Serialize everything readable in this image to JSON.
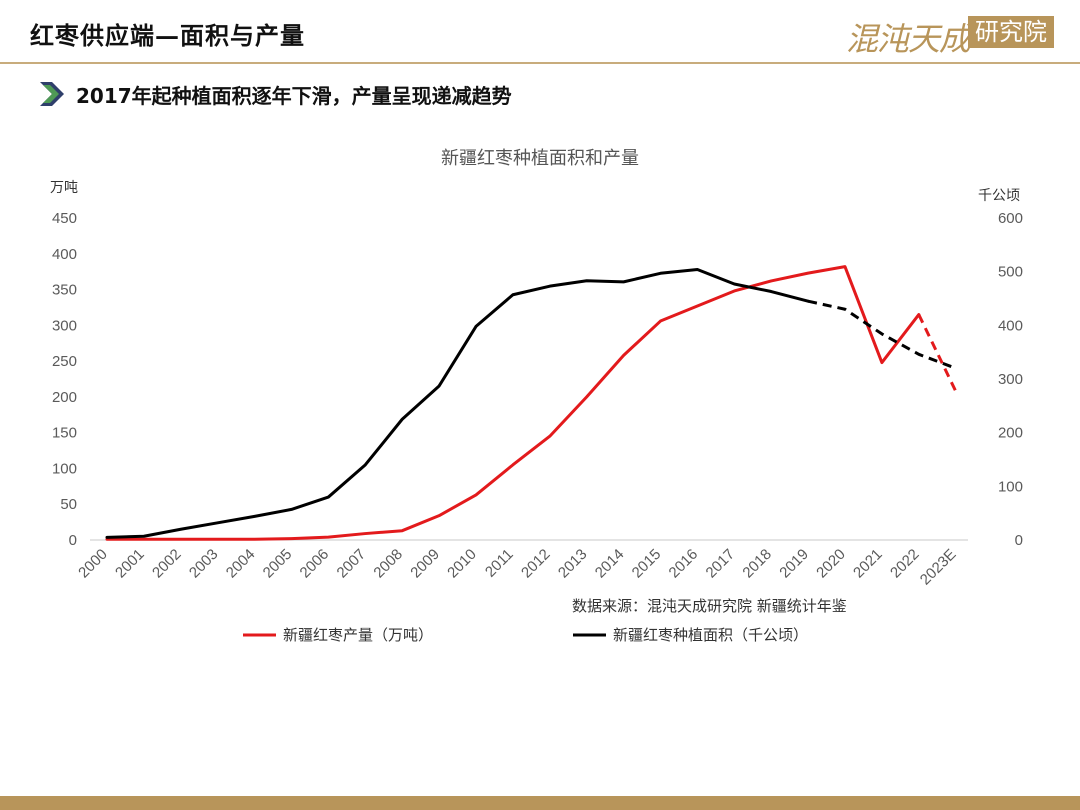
{
  "header": {
    "title": "红枣供应端—面积与产量",
    "logo_text": "混沌天成",
    "logo_box_text": "研究院"
  },
  "subtitle": "2017年起种植面积逐年下滑，产量呈现递减趋势",
  "colors": {
    "accent": "#b8955a",
    "production": "#e31a1c",
    "area": "#000000",
    "chevron": "#3a7d44"
  },
  "chart_data": {
    "type": "line",
    "title": "新疆红枣种植面积和产量",
    "categories": [
      "2000",
      "2001",
      "2002",
      "2003",
      "2004",
      "2005",
      "2006",
      "2007",
      "2008",
      "2009",
      "2010",
      "2011",
      "2012",
      "2013",
      "2014",
      "2015",
      "2016",
      "2017",
      "2018",
      "2019",
      "2020",
      "2021",
      "2022",
      "2023E"
    ],
    "left_axis": {
      "unit": "万吨",
      "min": 0,
      "max": 450,
      "ticks": [
        "0",
        "50",
        "100",
        "150",
        "200",
        "250",
        "300",
        "350",
        "400",
        "450"
      ]
    },
    "right_axis": {
      "unit": "千公顷",
      "min": 0,
      "max": 600,
      "ticks": [
        "0",
        "100",
        "200",
        "300",
        "400",
        "500",
        "600"
      ]
    },
    "series": [
      {
        "name": "新疆红枣产量（万吨）",
        "axis": "left",
        "color": "#e31a1c",
        "values": [
          1,
          1,
          1,
          1,
          1,
          2,
          4,
          9,
          13,
          34,
          63,
          105,
          145,
          200,
          258,
          306,
          327,
          348,
          362,
          373,
          382,
          248,
          315,
          208
        ],
        "projection_from_index": 22
      },
      {
        "name": "新疆红枣种植面积（千公顷）",
        "axis": "right",
        "color": "#000000",
        "values": [
          5,
          7,
          20,
          32,
          44,
          57,
          80,
          140,
          225,
          287,
          398,
          457,
          473,
          483,
          481,
          497,
          504,
          477,
          463,
          445,
          430,
          384,
          346,
          320
        ],
        "projection_from_index": 19
      }
    ],
    "source": "数据来源：混沌天成研究院 新疆统计年鉴",
    "grid": false,
    "legend_position": "bottom"
  }
}
